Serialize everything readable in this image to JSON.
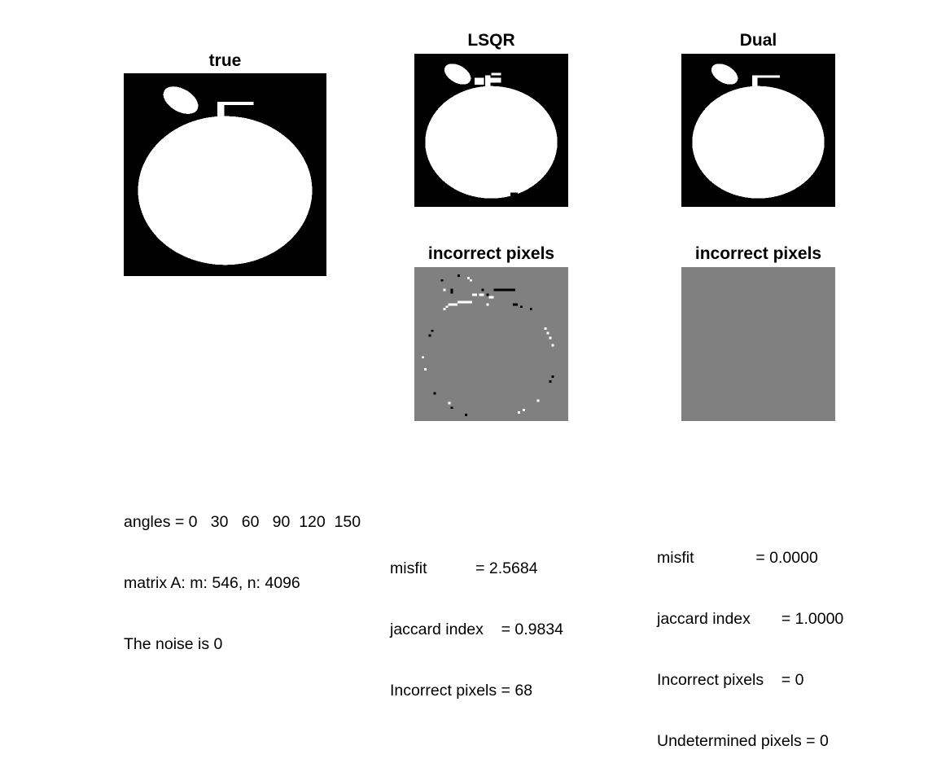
{
  "panels": {
    "true_title": "true",
    "lsqr_title": "LSQR",
    "dual_title": "Dual",
    "lsqr_incorrect_title": "incorrect pixels",
    "dual_incorrect_title": "incorrect pixels"
  },
  "colors": {
    "background": "#000000",
    "foreground": "#ffffff",
    "neutral": "#808080"
  },
  "info_left": {
    "angles": "angles = 0   30   60   90  120  150",
    "matrix": "matrix A: m: 546, n: 4096",
    "noise": "The noise is 0"
  },
  "info_lsqr": {
    "misfit": "misfit           = 2.5684",
    "jaccard": "jaccard index    = 0.9834",
    "incorrect": "Incorrect pixels = 68"
  },
  "info_dual": {
    "misfit": "misfit              = 0.0000",
    "jaccard": "jaccard index       = 1.0000",
    "incorrect": "Incorrect pixels    = 0",
    "undetermined": "Undetermined pixels = 0"
  }
}
